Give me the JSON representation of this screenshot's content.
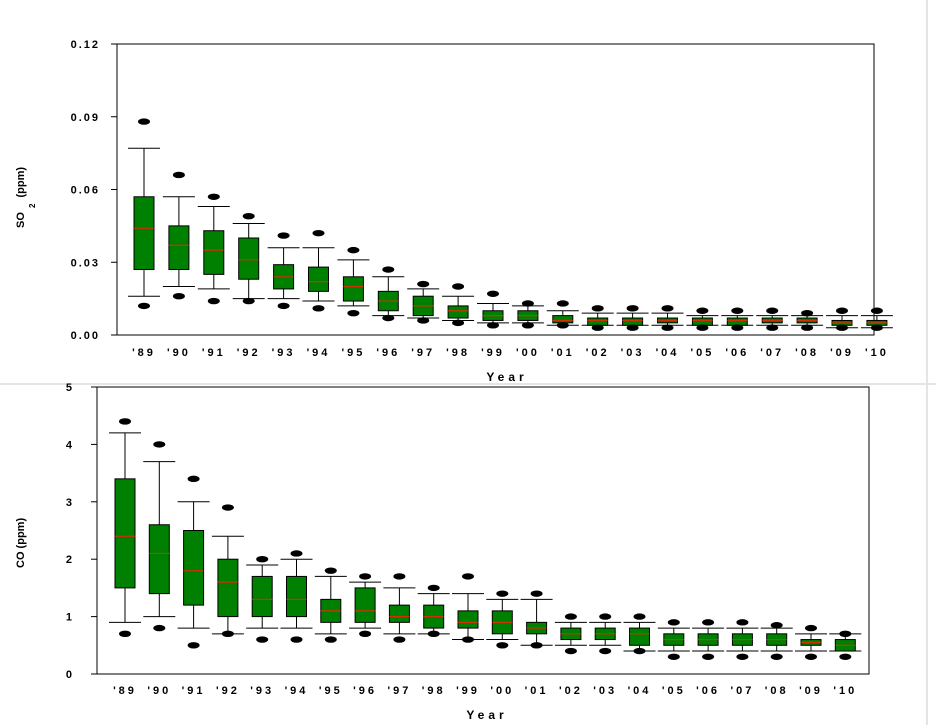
{
  "chart_data": [
    {
      "type": "boxplot",
      "xlabel": "Year",
      "ylabel_main": "SO",
      "ylabel_sub": "2",
      "ylabel_unit": "(ppm)",
      "ylim": [
        0,
        0.12
      ],
      "yticks": [
        0,
        0.03,
        0.06,
        0.09,
        0.12
      ],
      "ytick_labels": [
        "0.00",
        "0.03",
        "0.06",
        "0.09",
        "0.12"
      ],
      "grid": false,
      "colors": {
        "box": "#008000",
        "median": "#cc3300",
        "outline": "#000000"
      },
      "categories": [
        "'89",
        "'90",
        "'91",
        "'92",
        "'93",
        "'94",
        "'95",
        "'96",
        "'97",
        "'98",
        "'99",
        "'00",
        "'01",
        "'02",
        "'03",
        "'04",
        "'05",
        "'06",
        "'07",
        "'08",
        "'09",
        "'10"
      ],
      "boxes": [
        {
          "out_hi": 0.088,
          "whi_hi": 0.077,
          "q3": 0.057,
          "med": 0.044,
          "q1": 0.027,
          "whi_lo": 0.016,
          "out_lo": 0.012
        },
        {
          "out_hi": 0.066,
          "whi_hi": 0.057,
          "q3": 0.045,
          "med": 0.037,
          "q1": 0.027,
          "whi_lo": 0.02,
          "out_lo": 0.016
        },
        {
          "out_hi": 0.057,
          "whi_hi": 0.053,
          "q3": 0.043,
          "med": 0.035,
          "q1": 0.025,
          "whi_lo": 0.019,
          "out_lo": 0.014
        },
        {
          "out_hi": 0.049,
          "whi_hi": 0.046,
          "q3": 0.04,
          "med": 0.031,
          "q1": 0.023,
          "whi_lo": 0.015,
          "out_lo": 0.014
        },
        {
          "out_hi": 0.041,
          "whi_hi": 0.036,
          "q3": 0.029,
          "med": 0.024,
          "q1": 0.019,
          "whi_lo": 0.015,
          "out_lo": 0.012
        },
        {
          "out_hi": 0.042,
          "whi_hi": 0.036,
          "q3": 0.028,
          "med": 0.022,
          "q1": 0.018,
          "whi_lo": 0.014,
          "out_lo": 0.011
        },
        {
          "out_hi": 0.035,
          "whi_hi": 0.031,
          "q3": 0.024,
          "med": 0.02,
          "q1": 0.014,
          "whi_lo": 0.012,
          "out_lo": 0.009
        },
        {
          "out_hi": 0.027,
          "whi_hi": 0.024,
          "q3": 0.018,
          "med": 0.014,
          "q1": 0.01,
          "whi_lo": 0.008,
          "out_lo": 0.007
        },
        {
          "out_hi": 0.021,
          "whi_hi": 0.019,
          "q3": 0.016,
          "med": 0.012,
          "q1": 0.008,
          "whi_lo": 0.007,
          "out_lo": 0.006
        },
        {
          "out_hi": 0.02,
          "whi_hi": 0.016,
          "q3": 0.012,
          "med": 0.01,
          "q1": 0.007,
          "whi_lo": 0.006,
          "out_lo": 0.005
        },
        {
          "out_hi": 0.017,
          "whi_hi": 0.013,
          "q3": 0.01,
          "med": 0.008,
          "q1": 0.006,
          "whi_lo": 0.005,
          "out_lo": 0.004
        },
        {
          "out_hi": 0.013,
          "whi_hi": 0.012,
          "q3": 0.01,
          "med": 0.008,
          "q1": 0.006,
          "whi_lo": 0.005,
          "out_lo": 0.004
        },
        {
          "out_hi": 0.013,
          "whi_hi": 0.01,
          "q3": 0.008,
          "med": 0.006,
          "q1": 0.005,
          "whi_lo": 0.004,
          "out_lo": 0.004
        },
        {
          "out_hi": 0.011,
          "whi_hi": 0.009,
          "q3": 0.007,
          "med": 0.006,
          "q1": 0.004,
          "whi_lo": 0.004,
          "out_lo": 0.003
        },
        {
          "out_hi": 0.011,
          "whi_hi": 0.009,
          "q3": 0.007,
          "med": 0.006,
          "q1": 0.004,
          "whi_lo": 0.004,
          "out_lo": 0.003
        },
        {
          "out_hi": 0.011,
          "whi_hi": 0.009,
          "q3": 0.007,
          "med": 0.006,
          "q1": 0.005,
          "whi_lo": 0.004,
          "out_lo": 0.003
        },
        {
          "out_hi": 0.01,
          "whi_hi": 0.008,
          "q3": 0.007,
          "med": 0.006,
          "q1": 0.004,
          "whi_lo": 0.004,
          "out_lo": 0.003
        },
        {
          "out_hi": 0.01,
          "whi_hi": 0.008,
          "q3": 0.007,
          "med": 0.006,
          "q1": 0.004,
          "whi_lo": 0.004,
          "out_lo": 0.003
        },
        {
          "out_hi": 0.01,
          "whi_hi": 0.008,
          "q3": 0.007,
          "med": 0.006,
          "q1": 0.005,
          "whi_lo": 0.004,
          "out_lo": 0.003
        },
        {
          "out_hi": 0.009,
          "whi_hi": 0.008,
          "q3": 0.007,
          "med": 0.006,
          "q1": 0.005,
          "whi_lo": 0.004,
          "out_lo": 0.003
        },
        {
          "out_hi": 0.01,
          "whi_hi": 0.008,
          "q3": 0.006,
          "med": 0.005,
          "q1": 0.004,
          "whi_lo": 0.003,
          "out_lo": 0.003
        },
        {
          "out_hi": 0.01,
          "whi_hi": 0.008,
          "q3": 0.006,
          "med": 0.005,
          "q1": 0.004,
          "whi_lo": 0.003,
          "out_lo": 0.003
        }
      ]
    },
    {
      "type": "boxplot",
      "xlabel": "Year",
      "ylabel": "CO (ppm)",
      "ylim": [
        0,
        5
      ],
      "yticks": [
        0,
        1,
        2,
        3,
        4,
        5
      ],
      "ytick_labels": [
        "0",
        "1",
        "2",
        "3",
        "4",
        "5"
      ],
      "grid": false,
      "colors": {
        "box": "#008000",
        "median": "#cc3300",
        "outline": "#000000"
      },
      "categories": [
        "'89",
        "'90",
        "'91",
        "'92",
        "'93",
        "'94",
        "'95",
        "'96",
        "'97",
        "'98",
        "'99",
        "'00",
        "'01",
        "'02",
        "'03",
        "'04",
        "'05",
        "'06",
        "'07",
        "'08",
        "'09",
        "'10"
      ],
      "boxes": [
        {
          "out_hi": 4.4,
          "whi_hi": 4.2,
          "q3": 3.4,
          "med": 2.4,
          "q1": 1.5,
          "whi_lo": 0.9,
          "out_lo": 0.7
        },
        {
          "out_hi": 4.0,
          "whi_hi": 3.7,
          "q3": 2.6,
          "med": 2.1,
          "q1": 1.4,
          "whi_lo": 1.0,
          "out_lo": 0.8
        },
        {
          "out_hi": 3.4,
          "whi_hi": 3.0,
          "q3": 2.5,
          "med": 1.8,
          "q1": 1.2,
          "whi_lo": 0.8,
          "out_lo": 0.5
        },
        {
          "out_hi": 2.9,
          "whi_hi": 2.4,
          "q3": 2.0,
          "med": 1.6,
          "q1": 1.0,
          "whi_lo": 0.7,
          "out_lo": 0.7
        },
        {
          "out_hi": 2.0,
          "whi_hi": 1.9,
          "q3": 1.7,
          "med": 1.3,
          "q1": 1.0,
          "whi_lo": 0.8,
          "out_lo": 0.6
        },
        {
          "out_hi": 2.1,
          "whi_hi": 2.0,
          "q3": 1.7,
          "med": 1.3,
          "q1": 1.0,
          "whi_lo": 0.8,
          "out_lo": 0.6
        },
        {
          "out_hi": 1.8,
          "whi_hi": 1.7,
          "q3": 1.3,
          "med": 1.1,
          "q1": 0.9,
          "whi_lo": 0.7,
          "out_lo": 0.6
        },
        {
          "out_hi": 1.7,
          "whi_hi": 1.6,
          "q3": 1.5,
          "med": 1.1,
          "q1": 0.9,
          "whi_lo": 0.8,
          "out_lo": 0.7
        },
        {
          "out_hi": 1.7,
          "whi_hi": 1.5,
          "q3": 1.2,
          "med": 1.0,
          "q1": 0.9,
          "whi_lo": 0.7,
          "out_lo": 0.6
        },
        {
          "out_hi": 1.5,
          "whi_hi": 1.4,
          "q3": 1.2,
          "med": 1.0,
          "q1": 0.8,
          "whi_lo": 0.7,
          "out_lo": 0.7
        },
        {
          "out_hi": 1.7,
          "whi_hi": 1.4,
          "q3": 1.1,
          "med": 0.9,
          "q1": 0.8,
          "whi_lo": 0.6,
          "out_lo": 0.6
        },
        {
          "out_hi": 1.4,
          "whi_hi": 1.3,
          "q3": 1.1,
          "med": 0.9,
          "q1": 0.7,
          "whi_lo": 0.6,
          "out_lo": 0.5
        },
        {
          "out_hi": 1.4,
          "whi_hi": 1.3,
          "q3": 0.9,
          "med": 0.8,
          "q1": 0.7,
          "whi_lo": 0.5,
          "out_lo": 0.5
        },
        {
          "out_hi": 1.0,
          "whi_hi": 0.9,
          "q3": 0.8,
          "med": 0.7,
          "q1": 0.6,
          "whi_lo": 0.5,
          "out_lo": 0.4
        },
        {
          "out_hi": 1.0,
          "whi_hi": 0.9,
          "q3": 0.8,
          "med": 0.7,
          "q1": 0.6,
          "whi_lo": 0.5,
          "out_lo": 0.4
        },
        {
          "out_hi": 1.0,
          "whi_hi": 0.9,
          "q3": 0.8,
          "med": 0.7,
          "q1": 0.5,
          "whi_lo": 0.4,
          "out_lo": 0.4
        },
        {
          "out_hi": 0.9,
          "whi_hi": 0.8,
          "q3": 0.7,
          "med": 0.6,
          "q1": 0.5,
          "whi_lo": 0.4,
          "out_lo": 0.3
        },
        {
          "out_hi": 0.9,
          "whi_hi": 0.8,
          "q3": 0.7,
          "med": 0.6,
          "q1": 0.5,
          "whi_lo": 0.4,
          "out_lo": 0.3
        },
        {
          "out_hi": 0.9,
          "whi_hi": 0.8,
          "q3": 0.7,
          "med": 0.6,
          "q1": 0.5,
          "whi_lo": 0.4,
          "out_lo": 0.3
        },
        {
          "out_hi": 0.85,
          "whi_hi": 0.8,
          "q3": 0.7,
          "med": 0.6,
          "q1": 0.5,
          "whi_lo": 0.4,
          "out_lo": 0.3
        },
        {
          "out_hi": 0.8,
          "whi_hi": 0.7,
          "q3": 0.6,
          "med": 0.55,
          "q1": 0.5,
          "whi_lo": 0.4,
          "out_lo": 0.3
        },
        {
          "out_hi": 0.7,
          "whi_hi": 0.7,
          "q3": 0.6,
          "med": 0.5,
          "q1": 0.4,
          "whi_lo": 0.4,
          "out_lo": 0.3
        }
      ]
    }
  ]
}
